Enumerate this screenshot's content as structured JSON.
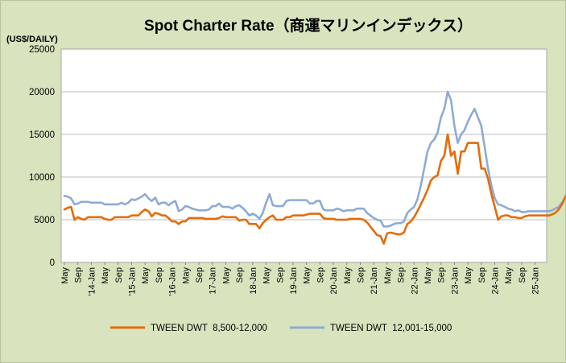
{
  "chart_data": {
    "type": "line",
    "title": "Spot Charter Rate（商運マリンインデックス）",
    "ylabel": "(US$/DAILY)",
    "ylim": [
      0,
      25000
    ],
    "yticks": [
      "0",
      "5000",
      "10000",
      "15000",
      "20000",
      "25000"
    ],
    "grid": "horizontal",
    "legend_position": "bottom",
    "x_tick_labels": [
      "May",
      "Sep",
      "'14-Jan",
      "May",
      "Sep",
      "'15-Jan",
      "May",
      "Sep",
      "'16-Jan",
      "May",
      "Sep",
      "17-Jan",
      "May",
      "Sep",
      "18-Jan",
      "May",
      "Sep",
      "19-Jan",
      "May",
      "Sep",
      "20-Jan",
      "May",
      "Sep",
      "21-Jan",
      "May",
      "Sep",
      "22-Jan",
      "May",
      "Sep",
      "23-Jan",
      "May",
      "Sep",
      "24-Jan",
      "May",
      "Sep",
      "25-Jan"
    ],
    "x_start": "2013-05",
    "points_per_tick": 4,
    "colors": {
      "s1": "#e46c0a",
      "s2": "#8eabd3",
      "background": "#d7e4bd",
      "plot": "#ffffff",
      "grid": "#bcbcbc"
    },
    "series": [
      {
        "name": "TWEEN DWT  8,500-12,000",
        "values": [
          6200,
          6400,
          6500,
          5000,
          5300,
          5100,
          5000,
          5300,
          5300,
          5300,
          5300,
          5300,
          5100,
          5000,
          5000,
          5300,
          5300,
          5300,
          5300,
          5300,
          5500,
          5500,
          5500,
          5900,
          6200,
          6000,
          5400,
          5800,
          5700,
          5500,
          5500,
          5200,
          4800,
          4800,
          4500,
          4800,
          4800,
          5200,
          5200,
          5200,
          5200,
          5200,
          5100,
          5100,
          5100,
          5100,
          5200,
          5400,
          5300,
          5300,
          5300,
          5300,
          4900,
          5000,
          5000,
          4500,
          4500,
          4500,
          4000,
          4600,
          5000,
          5300,
          5500,
          5000,
          5000,
          5000,
          5300,
          5300,
          5500,
          5500,
          5500,
          5500,
          5600,
          5700,
          5700,
          5700,
          5700,
          5200,
          5100,
          5100,
          5100,
          5000,
          5000,
          5000,
          5000,
          5100,
          5100,
          5100,
          5100,
          5000,
          4700,
          4200,
          3700,
          3200,
          3100,
          2200,
          3400,
          3500,
          3400,
          3300,
          3300,
          3500,
          4500,
          4800,
          5300,
          6000,
          6800,
          7600,
          8500,
          9600,
          10000,
          10200,
          11900,
          12500,
          15000,
          12500,
          13000,
          10400,
          13000,
          13000,
          14000,
          14000,
          14000,
          14000,
          11000,
          11000,
          9800,
          8000,
          6500,
          5000,
          5400,
          5500,
          5500,
          5300,
          5300,
          5200,
          5200,
          5400,
          5500,
          5500,
          5500,
          5500,
          5500,
          5500,
          5500,
          5600,
          5800,
          6200,
          6800,
          7700,
          8100,
          7700,
          7700,
          7900,
          6800,
          6800,
          7000
        ]
      },
      {
        "name": "TWEEN DWT  12,001-15,000",
        "values": [
          7800,
          7700,
          7500,
          6800,
          6900,
          7100,
          7100,
          7100,
          7000,
          7000,
          7000,
          7000,
          6800,
          6800,
          6800,
          6800,
          6800,
          7000,
          6800,
          7000,
          7400,
          7300,
          7500,
          7700,
          8000,
          7500,
          7200,
          7600,
          6800,
          7000,
          7000,
          6700,
          7000,
          7200,
          6000,
          6200,
          6600,
          6500,
          6300,
          6200,
          6100,
          6100,
          6100,
          6200,
          6600,
          6600,
          6900,
          6500,
          6500,
          6500,
          6300,
          6600,
          6700,
          6400,
          6000,
          5500,
          5700,
          5500,
          5100,
          5800,
          7000,
          8000,
          6700,
          6600,
          6600,
          6600,
          7200,
          7300,
          7300,
          7300,
          7300,
          7300,
          7300,
          6900,
          6900,
          7200,
          7200,
          6200,
          6100,
          6100,
          6100,
          6300,
          6200,
          6000,
          6100,
          6100,
          6100,
          6300,
          6300,
          6300,
          5800,
          5500,
          5200,
          5000,
          4900,
          4200,
          4200,
          4300,
          4500,
          4600,
          4600,
          4800,
          5800,
          6200,
          6500,
          7400,
          9000,
          11000,
          13000,
          14000,
          14400,
          15200,
          17000,
          18000,
          20000,
          19000,
          16000,
          14000,
          15000,
          15500,
          16500,
          17300,
          18000,
          17000,
          16000,
          13500,
          11000,
          9000,
          7500,
          6800,
          6700,
          6500,
          6300,
          6200,
          6000,
          6100,
          5900,
          5900,
          6000,
          6000,
          6000,
          6000,
          6000,
          6000,
          6000,
          6100,
          6300,
          6500,
          7000,
          7600,
          8700,
          9000,
          8200,
          8100,
          8400,
          7300,
          7300,
          7500
        ]
      }
    ]
  }
}
